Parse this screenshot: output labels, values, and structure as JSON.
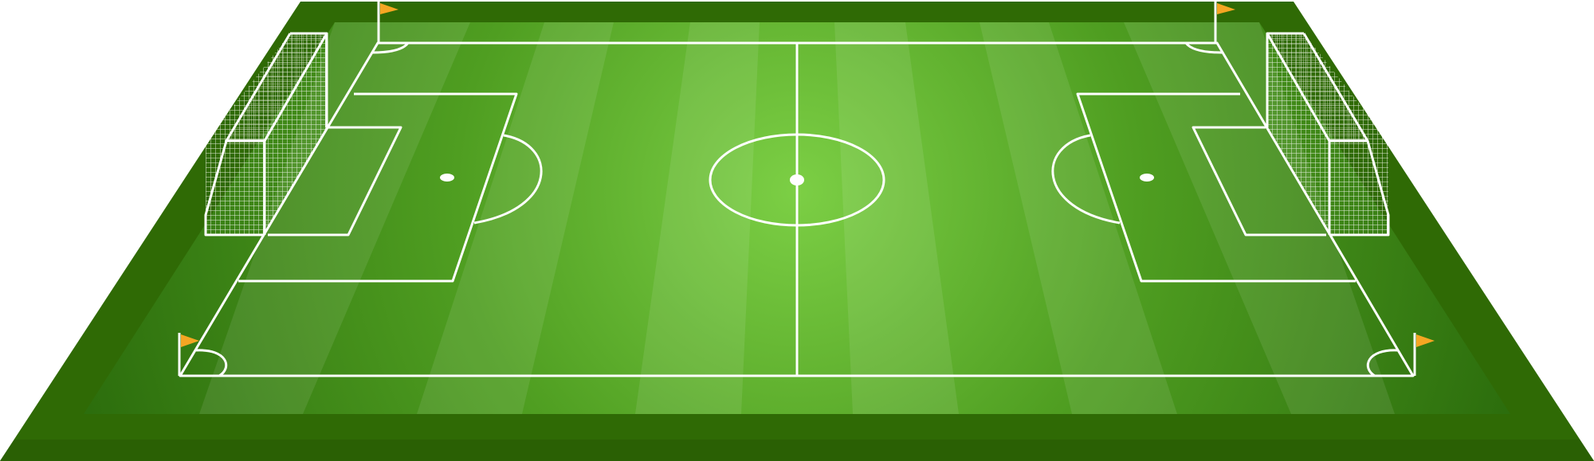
{
  "scene": {
    "subject": "soccer-pitch",
    "view": "perspective",
    "colors": {
      "background": "#ffffff",
      "outer_ground": "#2f6a05",
      "outer_ground_dark": "#2a6004",
      "grass_light": "#7ccf45",
      "grass_mid": "#4f9e21",
      "grass_dark": "#2e7210",
      "stripe_light": "#ffffff",
      "line": "#ffffff",
      "flag": "#f5a623",
      "net": "#ffffff"
    },
    "markings": [
      "touchlines",
      "goal-lines",
      "halfway-line",
      "center-circle",
      "center-spot",
      "penalty-areas",
      "goal-areas",
      "penalty-spots",
      "penalty-arcs",
      "corner-arcs"
    ],
    "goals": [
      "left-goal",
      "right-goal"
    ],
    "corner_flags": [
      "top-left",
      "top-right",
      "bottom-left",
      "bottom-right"
    ]
  }
}
